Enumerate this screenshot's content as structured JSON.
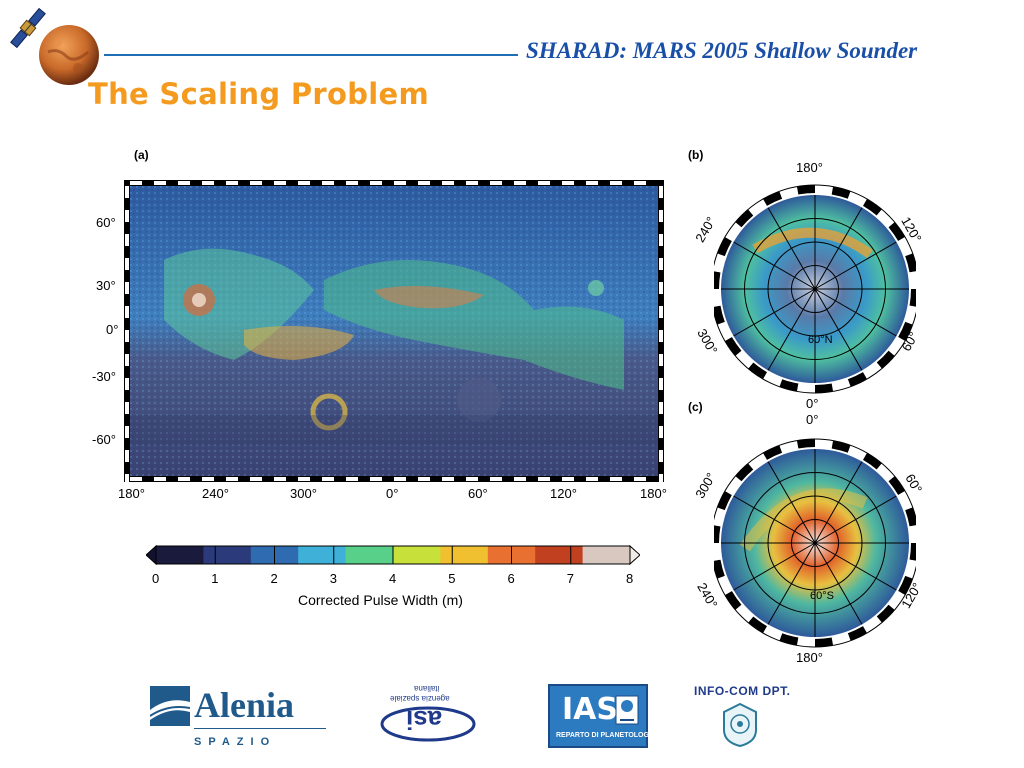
{
  "header": {
    "title": "SHARAD: MARS 2005 Shallow Sounder"
  },
  "slide": {
    "title": "The Scaling Problem"
  },
  "figure": {
    "panel_a": {
      "label": "(a)",
      "lat_ticks": [
        "60°",
        "30°",
        "0°",
        "-30°",
        "-60°"
      ],
      "lon_ticks": [
        "180°",
        "240°",
        "300°",
        "0°",
        "60°",
        "120°",
        "180°"
      ]
    },
    "panel_b": {
      "label": "(b)",
      "lon_labels": {
        "top": "180°",
        "bottom": "0°",
        "upper_left": "240°",
        "upper_right": "120°",
        "lower_left": "300°",
        "lower_right": "60°"
      },
      "lat_label": "60°N"
    },
    "panel_c": {
      "label": "(c)",
      "lon_labels": {
        "top": "0°",
        "bottom": "180°",
        "upper_left": "300°",
        "upper_right": "60°",
        "lower_left": "240°",
        "lower_right": "120°"
      },
      "lat_label": "60°S"
    },
    "colorbar": {
      "ticks": [
        "0",
        "1",
        "2",
        "3",
        "4",
        "5",
        "6",
        "7",
        "8"
      ],
      "label": "Corrected Pulse Width (m)",
      "colors": [
        "#1a1a3c",
        "#2b3a7a",
        "#2f6bb0",
        "#3fb0d8",
        "#58d08a",
        "#c8e03a",
        "#f0c030",
        "#e87030",
        "#c04020",
        "#d8c8c0"
      ]
    }
  },
  "logos": {
    "alenia": {
      "name": "Alenia",
      "sub": "SPAZIO"
    },
    "asi": {
      "text1": "agenzia spaziale",
      "text2": "italiana",
      "mark": "asi"
    },
    "ias": {
      "mark": "IAS",
      "caption": "REPARTO DI PLANETOLOGIA"
    },
    "infocom": {
      "text": "INFO-COM DPT."
    }
  }
}
